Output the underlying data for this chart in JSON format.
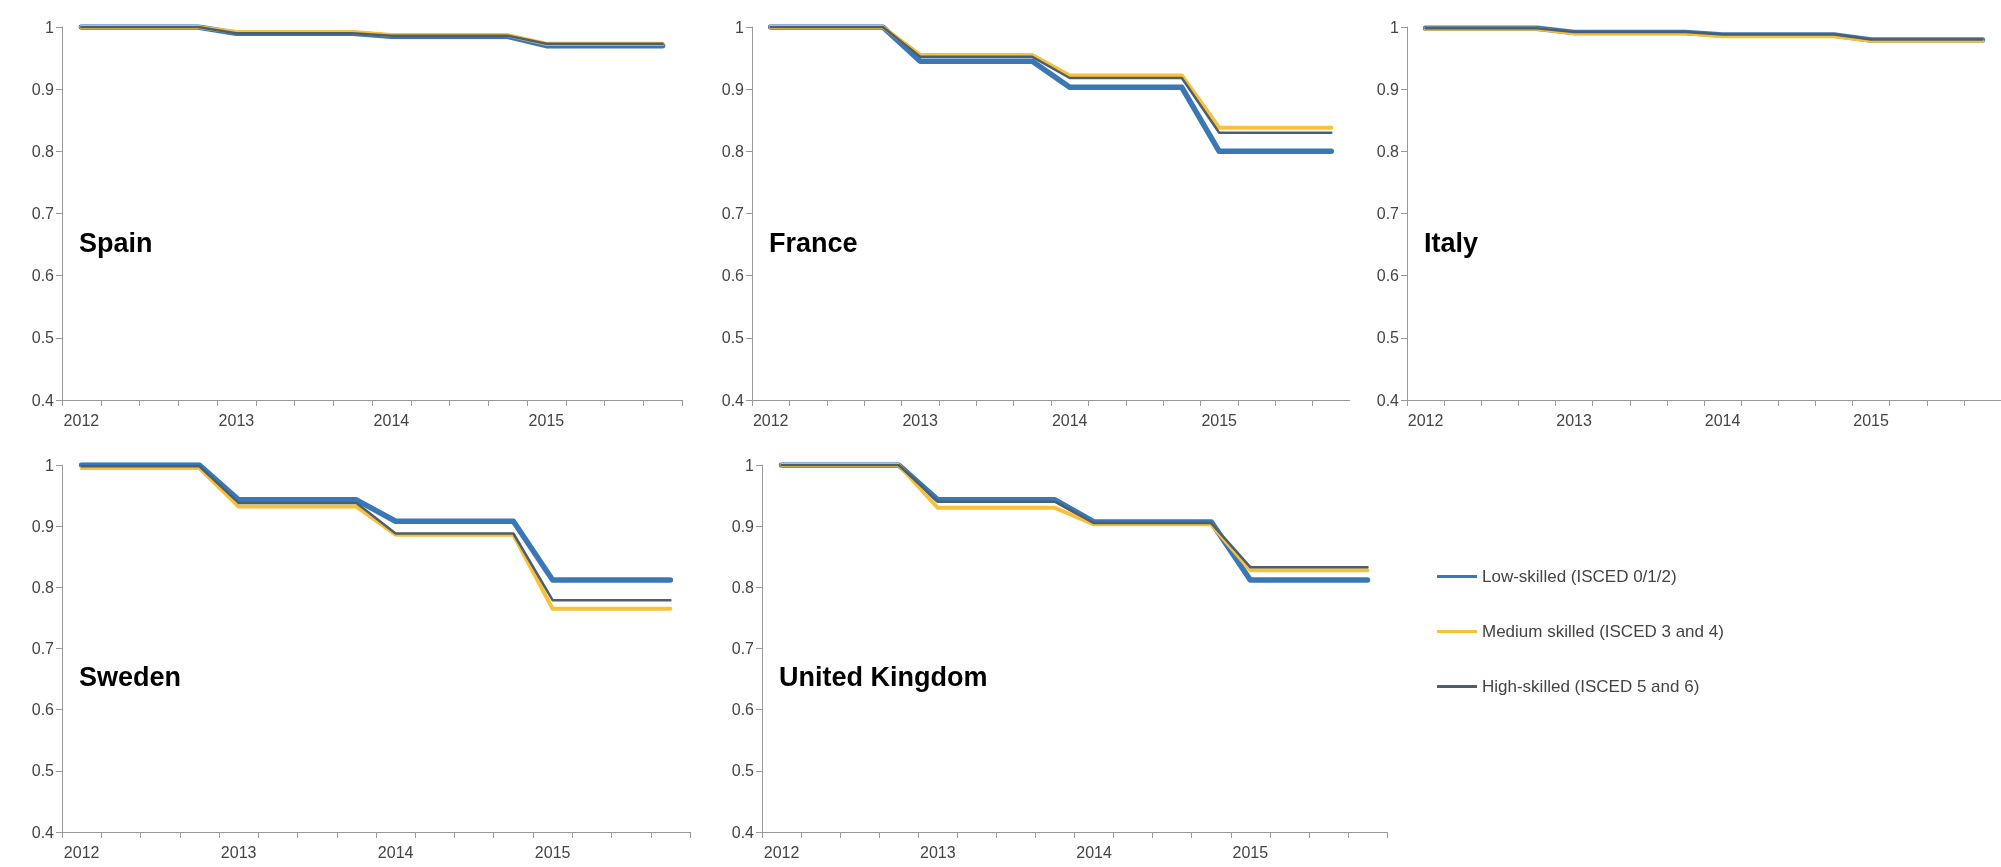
{
  "chart_data": [
    {
      "type": "line",
      "title": "Spain",
      "categories": [
        "2012",
        null,
        null,
        null,
        "2013",
        null,
        null,
        null,
        "2014",
        null,
        null,
        null,
        "2015",
        null,
        null,
        null
      ],
      "ylim": [
        0.4,
        1
      ],
      "yticks": [
        0.4,
        0.5,
        0.6,
        0.7,
        0.8,
        0.9,
        1
      ],
      "marker": "none",
      "line_style": "solid",
      "legend": false,
      "series": [
        {
          "color": "#3a78b5",
          "values": [
            1,
            1,
            1,
            1,
            0.99,
            0.99,
            0.99,
            0.99,
            0.985,
            0.985,
            0.985,
            0.985,
            0.97,
            0.97,
            0.97,
            0.97
          ]
        },
        {
          "color": "#f7c23a",
          "values": [
            1,
            1,
            1,
            1,
            0.992,
            0.992,
            0.992,
            0.992,
            0.987,
            0.987,
            0.987,
            0.987,
            0.973,
            0.973,
            0.973,
            0.973
          ]
        },
        {
          "color": "#4d5f6e",
          "values": [
            1,
            1,
            1,
            1,
            0.99,
            0.99,
            0.99,
            0.99,
            0.986,
            0.986,
            0.986,
            0.986,
            0.973,
            0.973,
            0.973,
            0.973
          ]
        }
      ]
    },
    {
      "type": "line",
      "title": "France",
      "categories": [
        "2012",
        null,
        null,
        null,
        "2013",
        null,
        null,
        null,
        "2014",
        null,
        null,
        null,
        "2015",
        null,
        null,
        null
      ],
      "ylim": [
        0.4,
        1
      ],
      "yticks": [
        0.4,
        0.5,
        0.6,
        0.7,
        0.8,
        0.9,
        1
      ],
      "marker": "none",
      "line_style": "solid",
      "legend": false,
      "series": [
        {
          "color": "#3a78b5",
          "values": [
            1,
            1,
            1,
            1,
            0.945,
            0.945,
            0.945,
            0.945,
            0.903,
            0.903,
            0.903,
            0.903,
            0.8,
            0.8,
            0.8,
            0.8
          ]
        },
        {
          "color": "#f7c23a",
          "values": [
            1,
            1,
            1,
            1,
            0.955,
            0.955,
            0.955,
            0.955,
            0.922,
            0.922,
            0.922,
            0.922,
            0.838,
            0.838,
            0.838,
            0.838
          ]
        },
        {
          "color": "#4d5f6e",
          "values": [
            1,
            1,
            1,
            1,
            0.952,
            0.952,
            0.952,
            0.952,
            0.918,
            0.918,
            0.918,
            0.918,
            0.83,
            0.83,
            0.83,
            0.83
          ]
        }
      ]
    },
    {
      "type": "line",
      "title": "Italy",
      "categories": [
        "2012",
        null,
        null,
        null,
        "2013",
        null,
        null,
        null,
        "2014",
        null,
        null,
        null,
        "2015",
        null,
        null,
        null
      ],
      "ylim": [
        0.4,
        1
      ],
      "yticks": [
        0.4,
        0.5,
        0.6,
        0.7,
        0.8,
        0.9,
        1
      ],
      "marker": "none",
      "line_style": "solid",
      "legend": false,
      "series": [
        {
          "color": "#3a78b5",
          "values": [
            0.998,
            0.998,
            0.998,
            0.998,
            0.991,
            0.991,
            0.991,
            0.991,
            0.987,
            0.987,
            0.987,
            0.987,
            0.979,
            0.979,
            0.979,
            0.979
          ]
        },
        {
          "color": "#f7c23a",
          "values": [
            0.997,
            0.997,
            0.997,
            0.997,
            0.99,
            0.99,
            0.99,
            0.99,
            0.985,
            0.985,
            0.985,
            0.985,
            0.978,
            0.978,
            0.978,
            0.978
          ]
        },
        {
          "color": "#4d5f6e",
          "values": [
            0.998,
            0.998,
            0.998,
            0.998,
            0.992,
            0.992,
            0.992,
            0.992,
            0.988,
            0.988,
            0.988,
            0.988,
            0.98,
            0.98,
            0.98,
            0.98
          ]
        }
      ]
    },
    {
      "type": "line",
      "title": "Sweden",
      "categories": [
        "2012",
        null,
        null,
        null,
        "2013",
        null,
        null,
        null,
        "2014",
        null,
        null,
        null,
        "2015",
        null,
        null,
        null
      ],
      "ylim": [
        0.4,
        1
      ],
      "yticks": [
        0.4,
        0.5,
        0.6,
        0.7,
        0.8,
        0.9,
        1
      ],
      "marker": "none",
      "line_style": "solid",
      "legend": false,
      "series": [
        {
          "color": "#3a78b5",
          "values": [
            1,
            1,
            1,
            1,
            0.943,
            0.943,
            0.943,
            0.943,
            0.908,
            0.908,
            0.908,
            0.908,
            0.812,
            0.812,
            0.812,
            0.812
          ]
        },
        {
          "color": "#f7c23a",
          "values": [
            0.995,
            0.995,
            0.995,
            0.995,
            0.932,
            0.932,
            0.932,
            0.932,
            0.886,
            0.886,
            0.886,
            0.886,
            0.765,
            0.765,
            0.765,
            0.765
          ]
        },
        {
          "color": "#4d5f6e",
          "values": [
            0.998,
            0.998,
            0.998,
            0.998,
            0.938,
            0.938,
            0.938,
            0.938,
            0.888,
            0.888,
            0.888,
            0.888,
            0.779,
            0.779,
            0.779,
            0.779
          ]
        }
      ]
    },
    {
      "type": "line",
      "title": "United Kingdom",
      "categories": [
        "2012",
        null,
        null,
        null,
        "2013",
        null,
        null,
        null,
        "2014",
        null,
        null,
        null,
        "2015",
        null,
        null,
        null
      ],
      "ylim": [
        0.4,
        1
      ],
      "yticks": [
        0.4,
        0.5,
        0.6,
        0.7,
        0.8,
        0.9,
        1
      ],
      "marker": "none",
      "line_style": "solid",
      "legend": "right",
      "series": [
        {
          "name": "Low-skilled (ISCED 0/1/2)",
          "color": "#3a78b5",
          "values": [
            1,
            1,
            1,
            1,
            0.943,
            0.943,
            0.943,
            0.943,
            0.907,
            0.907,
            0.907,
            0.907,
            0.812,
            0.812,
            0.812,
            0.812
          ]
        },
        {
          "name": "Medium skilled (ISCED 3 and 4)",
          "color": "#f7c23a",
          "values": [
            1,
            1,
            1,
            1,
            0.93,
            0.93,
            0.93,
            0.93,
            0.903,
            0.903,
            0.903,
            0.903,
            0.828,
            0.828,
            0.828,
            0.828
          ]
        },
        {
          "name": "High-skilled (ISCED 5 and 6)",
          "color": "#4d5f6e",
          "values": [
            1,
            1,
            1,
            1,
            0.94,
            0.94,
            0.94,
            0.94,
            0.905,
            0.905,
            0.905,
            0.905,
            0.833,
            0.833,
            0.833,
            0.833
          ]
        }
      ]
    }
  ]
}
